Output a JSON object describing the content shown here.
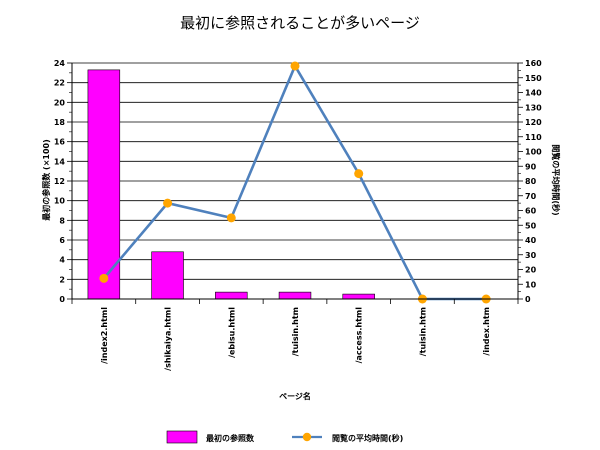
{
  "chart_data": {
    "type": "bar+line",
    "title": "最初に参照されることが多いページ",
    "xlabel": "ページ名",
    "categories": [
      "/index2.html",
      "/shikaiya.html",
      "/ebisu.html",
      "/tuisin.htm",
      "/access.html",
      "/tuisin.htm",
      "/index.htm"
    ],
    "bar_series": {
      "name": "最初の参照数",
      "axis_label": "最初の参照数 (×100)",
      "values": [
        23.3,
        4.8,
        0.7,
        0.7,
        0.5,
        0,
        0
      ],
      "ylim": [
        0,
        24
      ],
      "yticks": [
        "0",
        "2",
        "4",
        "6",
        "8",
        "10",
        "12",
        "14",
        "16",
        "18",
        "20",
        "22",
        "24"
      ],
      "color": "#ff00ff"
    },
    "line_series": {
      "name": "閲覧の平均時間(秒)",
      "axis_label": "閲覧の平均時間(秒)",
      "values": [
        14,
        65,
        55,
        158,
        85,
        0,
        0
      ],
      "ylim": [
        0,
        160
      ],
      "yticks": [
        "0",
        "10",
        "20",
        "30",
        "40",
        "50",
        "60",
        "70",
        "80",
        "90",
        "100",
        "110",
        "120",
        "130",
        "140",
        "150",
        "160"
      ],
      "line_color": "#4f81bd",
      "marker_color": "#ffa500"
    },
    "grid": true,
    "legend_position": "bottom"
  }
}
